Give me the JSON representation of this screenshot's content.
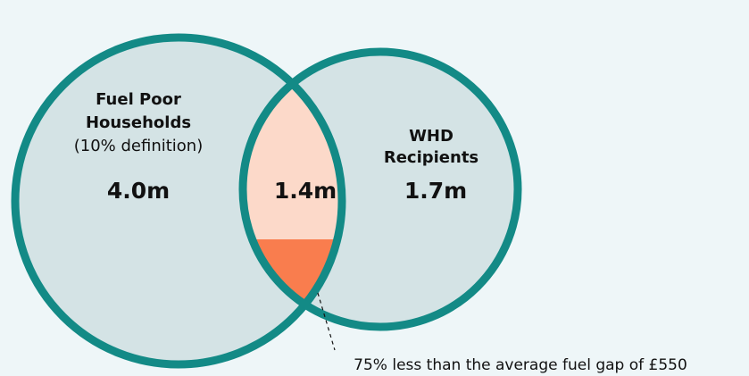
{
  "left_set": {
    "label_lines": [
      "Fuel Poor",
      "Households"
    ],
    "note": "(10% definition)",
    "value": "4.0m"
  },
  "right_set": {
    "label_lines": [
      "WHD",
      "Recipients"
    ],
    "value": "1.7m"
  },
  "overlap": {
    "value": "1.4m"
  },
  "annotation": "75% less than the average fuel gap of £550"
}
